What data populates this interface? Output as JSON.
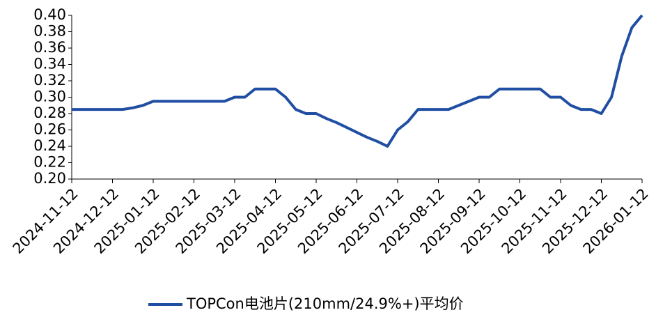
{
  "chart_data": {
    "type": "line",
    "categories": [
      "2024-11-12",
      null,
      null,
      null,
      "2024-12-12",
      null,
      null,
      null,
      "2025-01-12",
      null,
      null,
      null,
      "2025-02-12",
      null,
      null,
      null,
      "2025-03-12",
      null,
      null,
      null,
      "2025-04-12",
      null,
      null,
      null,
      "2025-05-12",
      null,
      null,
      null,
      "2025-06-12",
      null,
      null,
      null,
      "2025-07-12",
      null,
      null,
      null,
      "2025-08-12",
      null,
      null,
      null,
      "2025-09-12",
      null,
      null,
      null,
      "2025-10-12",
      null,
      null,
      null,
      "2025-11-12",
      null,
      null,
      null,
      "2025-12-12",
      null,
      null,
      null,
      "2026-01-12"
    ],
    "series": [
      {
        "name": "TOPCon电池片(210mm/24.9%+)平均价",
        "color": "#1f4ea3",
        "values": [
          0.285,
          0.285,
          0.285,
          0.285,
          0.285,
          0.285,
          0.287,
          0.29,
          0.295,
          0.295,
          0.295,
          0.295,
          0.295,
          0.295,
          0.295,
          0.295,
          0.3,
          0.3,
          0.31,
          0.31,
          0.31,
          0.3,
          0.285,
          0.28,
          0.28,
          0.274,
          0.269,
          0.263,
          0.257,
          0.251,
          0.246,
          0.24,
          0.26,
          0.27,
          0.285,
          0.285,
          0.285,
          0.285,
          0.29,
          0.295,
          0.3,
          0.3,
          0.31,
          0.31,
          0.31,
          0.31,
          0.31,
          0.3,
          0.3,
          0.29,
          0.285,
          0.285,
          0.28,
          0.3,
          0.35,
          0.385,
          0.4
        ]
      }
    ],
    "ylim": [
      0.2,
      0.4
    ],
    "yticks": [
      {
        "value": 0.2,
        "label": "0.20"
      },
      {
        "value": 0.22,
        "label": "0.22"
      },
      {
        "value": 0.24,
        "label": "0.24"
      },
      {
        "value": 0.26,
        "label": "0.26"
      },
      {
        "value": 0.28,
        "label": "0.28"
      },
      {
        "value": 0.3,
        "label": "0.30"
      },
      {
        "value": 0.32,
        "label": "0.32"
      },
      {
        "value": 0.34,
        "label": "0.34"
      },
      {
        "value": 0.36,
        "label": "0.36"
      },
      {
        "value": 0.38,
        "label": "0.38"
      },
      {
        "value": 0.4,
        "label": "0.40"
      }
    ],
    "grid": false,
    "legend": "bottom"
  }
}
